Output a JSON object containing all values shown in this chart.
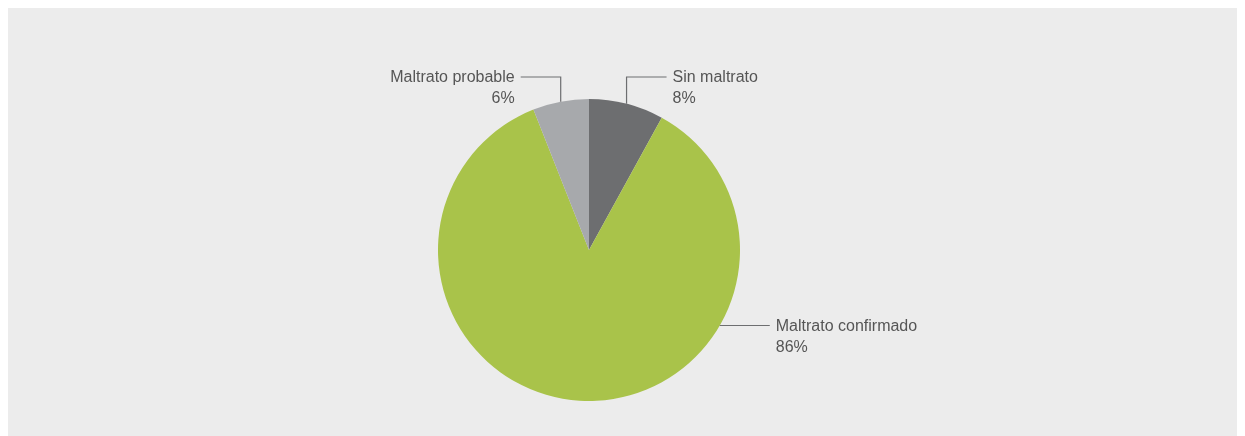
{
  "chart_data": {
    "type": "pie",
    "categories": [
      "Sin maltrato",
      "Maltrato confirmado",
      "Maltrato probable"
    ],
    "values": [
      8,
      86,
      6
    ],
    "colors": [
      "#6d6e70",
      "#a9c34a",
      "#a7a9ac"
    ],
    "value_labels": [
      "8%",
      "86%",
      "6%"
    ]
  }
}
